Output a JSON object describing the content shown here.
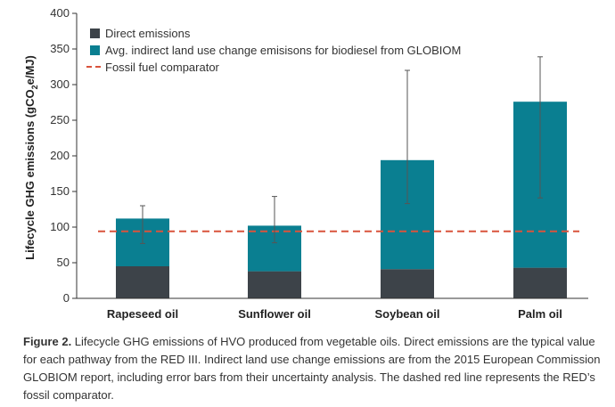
{
  "colors": {
    "direct": "#3d4349",
    "indirect": "#0a7f91",
    "fossil": "#d9533c",
    "errorbar": "#555555",
    "axis": "#333333"
  },
  "chart_data": {
    "type": "bar",
    "stacked": true,
    "categories": [
      "Rapeseed oil",
      "Sunflower oil",
      "Soybean oil",
      "Palm oil"
    ],
    "series": [
      {
        "name": "Direct emissions",
        "values": [
          45,
          38,
          41,
          43
        ]
      },
      {
        "name": "Avg. indirect land use change emisisons for biodiesel from GLOBIOM",
        "values": [
          67,
          64,
          153,
          233
        ]
      }
    ],
    "totals": [
      112,
      102,
      194,
      276
    ],
    "error_bars": [
      {
        "low": 77,
        "high": 130
      },
      {
        "low": 78,
        "high": 143
      },
      {
        "low": 133,
        "high": 320
      },
      {
        "low": 141,
        "high": 339
      }
    ],
    "reference_line": {
      "name": "Fossil fuel comparator",
      "value": 94
    },
    "ylabel_prefix": "Lifecycle GHG emissions (gCO",
    "ylabel_sub": "2",
    "ylabel_suffix": "e/MJ)",
    "ylim": [
      0,
      400
    ],
    "yticks": [
      0,
      50,
      100,
      150,
      200,
      250,
      300,
      350,
      400
    ],
    "grid": false,
    "legend_position": "top-left"
  },
  "caption": {
    "label": "Figure 2.",
    "text": " Lifecycle GHG emissions of HVO produced from vegetable oils. Direct emissions are the typical value for each pathway from the RED III. Indirect land use change emissions are from the 2015 European Commission GLOBIOM report, including error bars from their uncertainty analysis. The dashed red line represents the RED’s fossil comparator."
  }
}
